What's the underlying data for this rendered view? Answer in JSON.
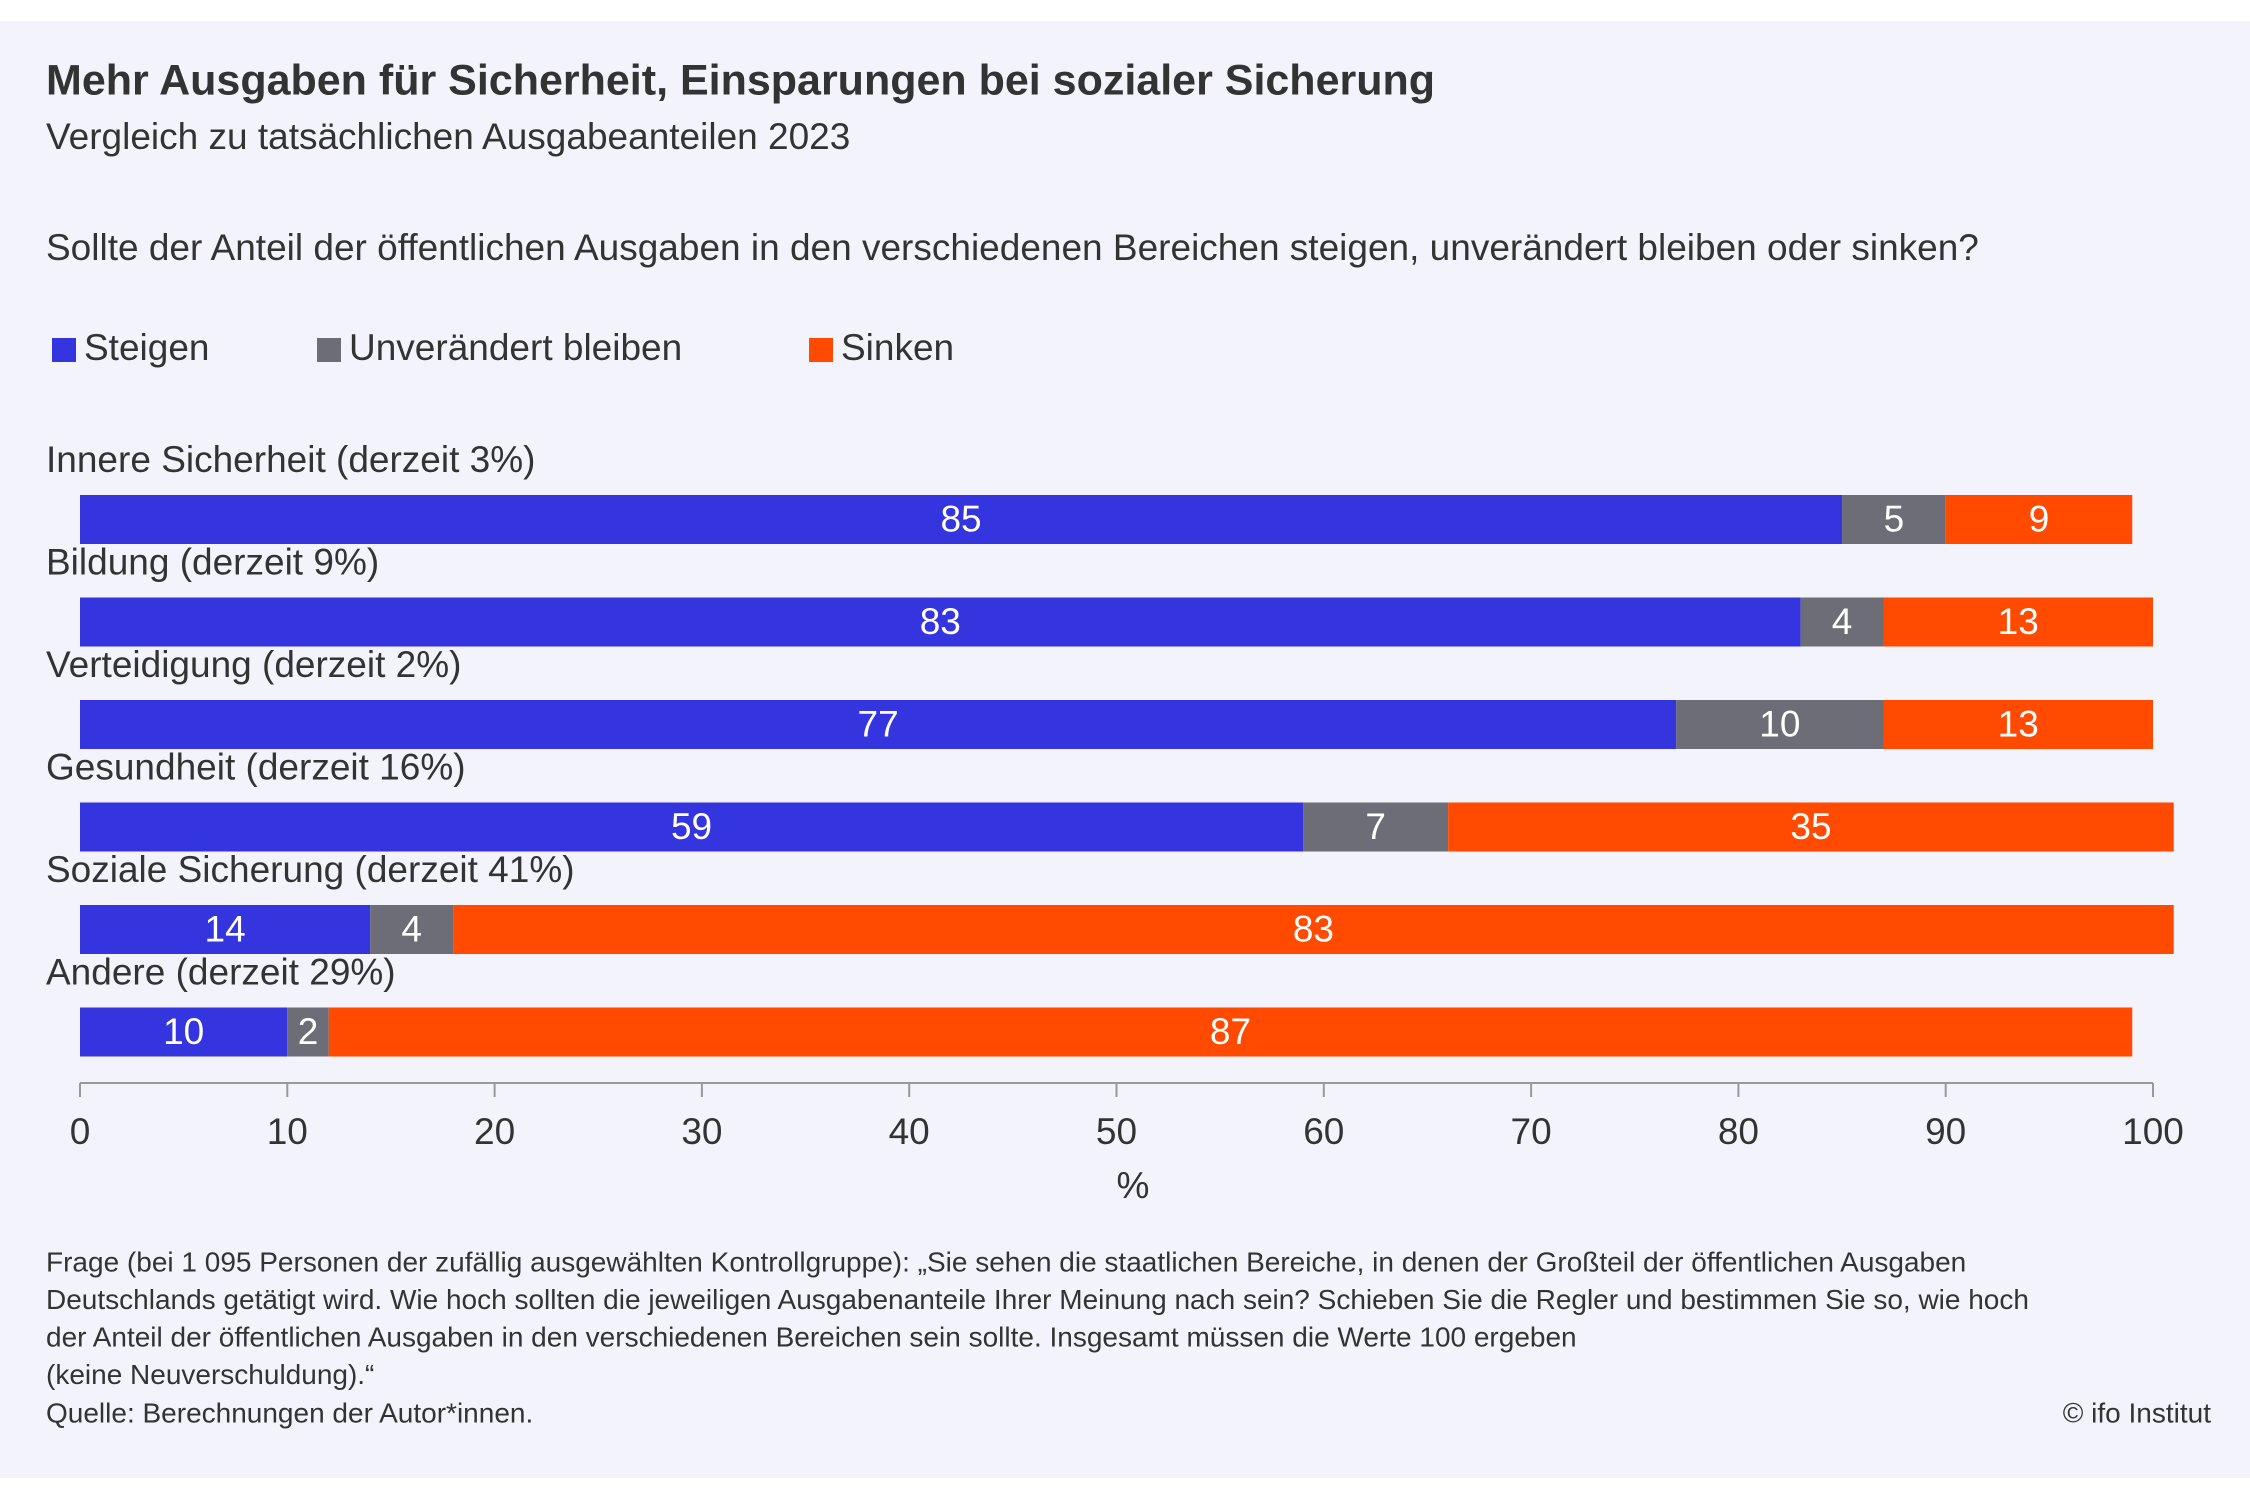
{
  "chart_data": {
    "type": "stacked-bar",
    "title": "Mehr Ausgaben für Sicherheit, Einsparungen bei sozialer Sicherung",
    "subtitle": "Vergleich zu tatsächlichen Ausgabeanteilen 2023",
    "question": "Sollte der Anteil der öffentlichen Ausgaben in den verschiedenen Bereichen steigen, unverändert bleiben oder sinken?",
    "categories": [
      "Innere Sicherheit (derzeit 3%)",
      "Bildung (derzeit 9%)",
      "Verteidigung (derzeit 2%)",
      "Gesundheit (derzeit 16%)",
      "Soziale Sicherung (derzeit 41%)",
      "Andere (derzeit 29%)"
    ],
    "series": [
      {
        "name": "Steigen",
        "color": "#3535e0",
        "values": [
          85,
          83,
          77,
          59,
          14,
          10
        ]
      },
      {
        "name": "Unverändert bleiben",
        "color": "#6d6d78",
        "values": [
          5,
          4,
          10,
          7,
          4,
          2
        ]
      },
      {
        "name": "Sinken",
        "color": "#ff4a00",
        "values": [
          9,
          13,
          13,
          35,
          83,
          87
        ]
      }
    ],
    "xlim": [
      0,
      100
    ],
    "xticks": [
      0,
      10,
      20,
      30,
      40,
      50,
      60,
      70,
      80,
      90,
      100
    ],
    "xlabel": "%",
    "footnote": [
      "Frage (bei 1 095 Personen der zufällig ausgewählten Kontrollgruppe): „Sie sehen die staatlichen Bereiche, in denen der Großteil der öffentlichen Ausgaben",
      "Deutschlands getätigt wird. Wie hoch sollten die jeweiligen Ausgabenanteile Ihrer Meinung nach sein? Schieben Sie die Regler und bestimmen Sie so, wie hoch",
      "der Anteil der öffentlichen Ausgaben in den verschiedenen Bereichen sein sollte. Insgesamt müssen die Werte 100 ergeben",
      "(keine Neuverschuldung).“"
    ],
    "source": "Quelle: Berechnungen der Autor*innen.",
    "copyright": "© ifo Institut"
  }
}
